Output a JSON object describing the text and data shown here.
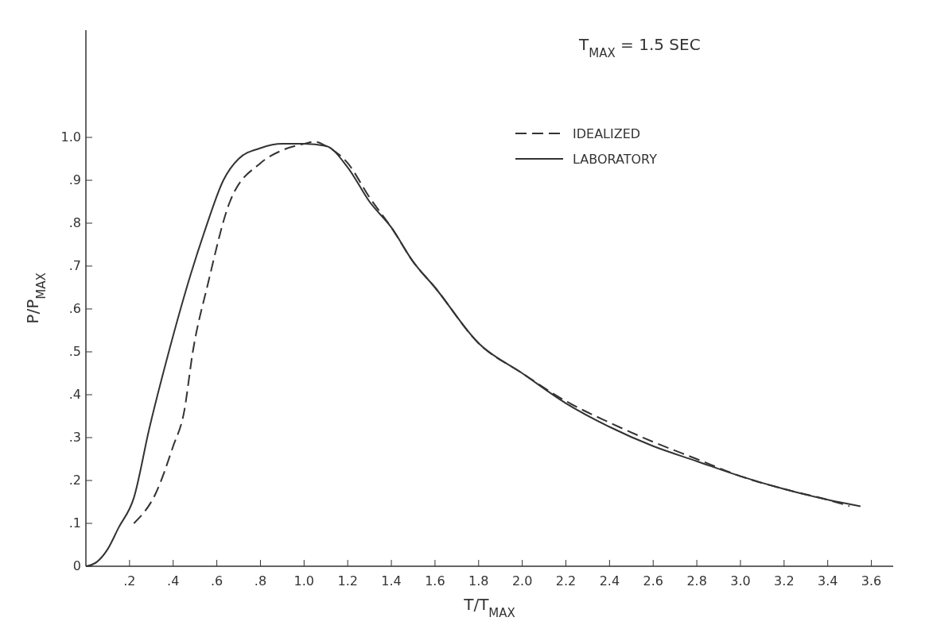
{
  "chart_data": {
    "type": "line",
    "xlabel": "T/T$_{MAX}$",
    "ylabel": "P/P$_{MAX}$",
    "annotations": [
      "T$_{MAX}$ = 1.5 SEC"
    ],
    "legend": "top right",
    "xlim": [
      0,
      3.7
    ],
    "ylim": [
      0,
      1.25
    ],
    "xticks": [
      {
        "value": 0.2,
        "label": ".2"
      },
      {
        "value": 0.4,
        "label": ".4"
      },
      {
        "value": 0.6,
        "label": ".6"
      },
      {
        "value": 0.8,
        "label": ".8"
      },
      {
        "value": 1.0,
        "label": "1.0"
      },
      1.2,
      1.4,
      1.6,
      1.8,
      {
        "value": 2.0,
        "label": "2.0"
      },
      2.2,
      2.4,
      2.6,
      2.8,
      {
        "value": 3.0,
        "label": "3.0"
      },
      3.2,
      3.4,
      3.6
    ],
    "yticks": [
      0,
      {
        "value": 0.1,
        "label": ".1"
      },
      {
        "value": 0.2,
        "label": ".2"
      },
      {
        "value": 0.3,
        "label": ".3"
      },
      {
        "value": 0.4,
        "label": ".4"
      },
      {
        "value": 0.5,
        "label": ".5"
      },
      {
        "value": 0.6,
        "label": ".6"
      },
      {
        "value": 0.7,
        "label": ".7"
      },
      {
        "value": 0.8,
        "label": ".8"
      },
      {
        "value": 0.9,
        "label": ".9"
      },
      {
        "value": 1.0,
        "label": "1.0"
      }
    ],
    "series": [
      {
        "name": "IDEALIZED",
        "color": "#333333",
        "line_style": "dashed",
        "x": [
          0.22,
          0.32,
          0.4,
          0.45,
          0.49,
          0.56,
          0.66,
          0.8,
          0.9,
          1.0,
          1.05,
          1.1,
          1.2,
          1.3,
          1.4,
          1.5,
          1.6,
          1.8,
          2.0,
          2.2,
          2.4,
          2.6,
          2.8,
          3.0,
          3.2,
          3.4,
          3.5
        ],
        "values": [
          0.1,
          0.17,
          0.28,
          0.36,
          0.5,
          0.66,
          0.85,
          0.94,
          0.97,
          0.985,
          0.99,
          0.98,
          0.94,
          0.86,
          0.79,
          0.71,
          0.65,
          0.52,
          0.45,
          0.385,
          0.335,
          0.29,
          0.25,
          0.21,
          0.18,
          0.155,
          0.14
        ]
      },
      {
        "name": "LABORATORY",
        "color": "#333333",
        "line_style": "solid",
        "x": [
          0,
          0.05,
          0.1,
          0.15,
          0.22,
          0.29,
          0.38,
          0.48,
          0.55,
          0.63,
          0.7,
          0.8,
          0.9,
          1.0,
          1.1,
          1.2,
          1.3,
          1.4,
          1.5,
          1.6,
          1.8,
          2.0,
          2.2,
          2.4,
          2.6,
          2.8,
          3.0,
          3.2,
          3.4,
          3.55
        ],
        "values": [
          0,
          0.01,
          0.04,
          0.09,
          0.16,
          0.32,
          0.5,
          0.68,
          0.79,
          0.9,
          0.95,
          0.975,
          0.985,
          0.985,
          0.98,
          0.93,
          0.85,
          0.79,
          0.71,
          0.65,
          0.52,
          0.45,
          0.38,
          0.325,
          0.28,
          0.245,
          0.21,
          0.18,
          0.155,
          0.14
        ]
      }
    ]
  }
}
